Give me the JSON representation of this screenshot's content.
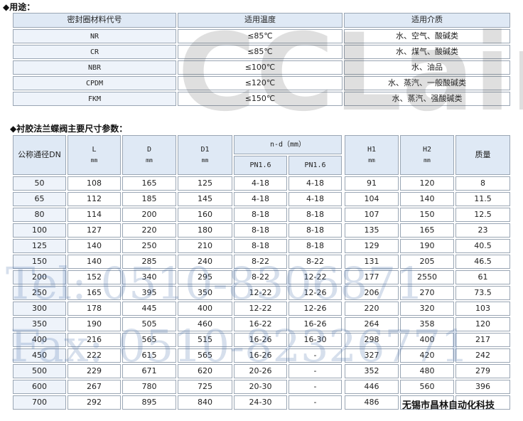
{
  "section1": {
    "heading": "◆用途：",
    "table": {
      "header": [
        "密封圈材料代号",
        "适用温度",
        "适用介质"
      ],
      "rows": [
        [
          "NR",
          "≤85℃",
          "水、空气、酸碱类"
        ],
        [
          "CR",
          "≤85℃",
          "水、煤气、酸碱类"
        ],
        [
          "NBR",
          "≤100℃",
          "水、油品"
        ],
        [
          "CPDM",
          "≤120℃",
          "水、蒸汽、一般酸碱类"
        ],
        [
          "FKM",
          "≤150℃",
          "水、蒸汽、强酸碱类"
        ]
      ]
    }
  },
  "section2": {
    "heading": "◆衬胶法兰蝶阀主要尺寸参数：",
    "table": {
      "header": {
        "dn": "公称通径DN",
        "L": "L",
        "D": "D",
        "D1": "D1",
        "nd": "n-d（mm）",
        "pn_a": "PN1.6",
        "pn_b": "PN1.6",
        "H1": "H1",
        "H2": "H2",
        "mass": "质量",
        "unit": "mm"
      },
      "rows": [
        [
          "50",
          "108",
          "165",
          "125",
          "4-18",
          "4-18",
          "91",
          "120",
          "8"
        ],
        [
          "65",
          "112",
          "185",
          "145",
          "4-18",
          "4-18",
          "104",
          "140",
          "11.5"
        ],
        [
          "80",
          "114",
          "200",
          "160",
          "8-18",
          "8-18",
          "107",
          "150",
          "12.5"
        ],
        [
          "100",
          "127",
          "220",
          "180",
          "8-18",
          "8-18",
          "135",
          "165",
          "23"
        ],
        [
          "125",
          "140",
          "250",
          "210",
          "8-18",
          "8-18",
          "129",
          "190",
          "40.5"
        ],
        [
          "150",
          "140",
          "285",
          "240",
          "8-22",
          "8-22",
          "131",
          "205",
          "46.5"
        ],
        [
          "200",
          "152",
          "340",
          "295",
          "8-22",
          "12-22",
          "177",
          "2550",
          "61"
        ],
        [
          "250",
          "165",
          "395",
          "350",
          "12-22",
          "12-26",
          "206",
          "270",
          "73.5"
        ],
        [
          "300",
          "178",
          "445",
          "400",
          "12-22",
          "12-26",
          "220",
          "320",
          "103"
        ],
        [
          "350",
          "190",
          "505",
          "460",
          "16-22",
          "16-26",
          "264",
          "358",
          "120"
        ],
        [
          "400",
          "216",
          "565",
          "515",
          "16-26",
          "16-30",
          "298",
          "400",
          "217"
        ],
        [
          "450",
          "222",
          "615",
          "565",
          "16-26",
          "-",
          "327",
          "420",
          "242"
        ],
        [
          "500",
          "229",
          "671",
          "620",
          "20-26",
          "-",
          "352",
          "480",
          "279"
        ],
        [
          "600",
          "267",
          "780",
          "725",
          "20-30",
          "-",
          "446",
          "560",
          "396"
        ],
        [
          "700",
          "292",
          "895",
          "840",
          "24-30",
          "-",
          "486",
          null,
          null
        ]
      ]
    }
  },
  "company": "无锡市昌林自动化科技",
  "watermark": {
    "logo": "CCLair",
    "tel": "Tel: 0510-8306871",
    "fax": "Fax: 0510-82326771"
  }
}
